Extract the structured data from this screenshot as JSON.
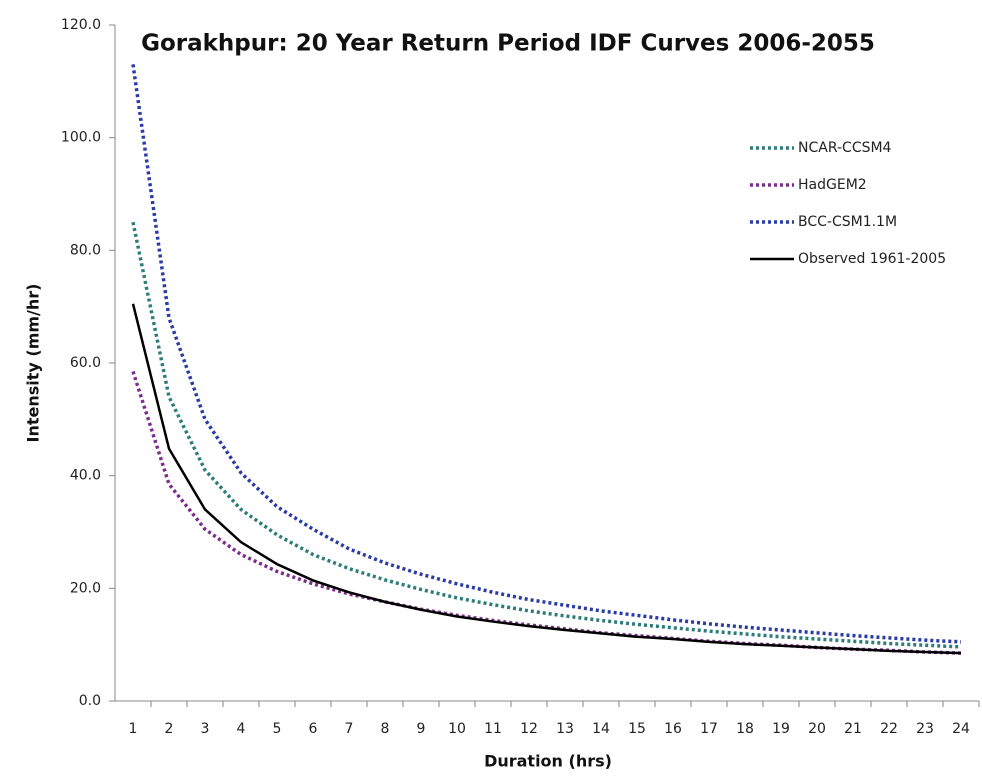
{
  "chart_data": {
    "type": "line",
    "title": "Gorakhpur: 20 Year Return Period IDF Curves 2006-2055",
    "x_label": "Duration (hrs)",
    "y_label": "Intensity (mm/hr)",
    "categories": [
      "1",
      "2",
      "3",
      "4",
      "5",
      "6",
      "7",
      "8",
      "9",
      "10",
      "11",
      "12",
      "13",
      "14",
      "15",
      "16",
      "17",
      "18",
      "19",
      "20",
      "21",
      "22",
      "23",
      "24"
    ],
    "series": [
      {
        "name": "NCAR-CCSM4",
        "color": "#2e7b7b",
        "style": "dotted",
        "values": [
          85,
          54,
          41,
          34,
          29.5,
          26,
          23.5,
          21.5,
          19.8,
          18.3,
          17.1,
          16,
          15.1,
          14.3,
          13.6,
          13,
          12.4,
          11.9,
          11.4,
          11,
          10.6,
          10.2,
          9.9,
          9.6
        ]
      },
      {
        "name": "HadGEM2",
        "color": "#7b2d8b",
        "style": "dotted",
        "values": [
          58.5,
          38.5,
          30.5,
          26,
          23,
          20.8,
          19,
          17.6,
          16.3,
          15.2,
          14.3,
          13.5,
          12.8,
          12.1,
          11.6,
          11.1,
          10.6,
          10.2,
          9.9,
          9.5,
          9.2,
          9,
          8.7,
          8.5
        ]
      },
      {
        "name": "BCC-CSM1.1M",
        "color": "#2a3aa8",
        "style": "dotted",
        "values": [
          113,
          68,
          50,
          40.5,
          34.5,
          30.5,
          27,
          24.5,
          22.5,
          20.8,
          19.3,
          18,
          17,
          16,
          15.2,
          14.4,
          13.7,
          13.1,
          12.6,
          12.1,
          11.6,
          11.2,
          10.8,
          10.5
        ]
      },
      {
        "name": "Observed 1961-2005",
        "color": "#000000",
        "style": "solid",
        "values": [
          70.5,
          44.8,
          34,
          28.2,
          24.3,
          21.4,
          19.3,
          17.6,
          16.2,
          15,
          14.1,
          13.3,
          12.6,
          12,
          11.4,
          11,
          10.5,
          10.1,
          9.8,
          9.5,
          9.2,
          8.9,
          8.7,
          8.5
        ]
      }
    ],
    "ylim": [
      0,
      120
    ],
    "yticks": [
      {
        "value": 0,
        "label": "0.0"
      },
      {
        "value": 20,
        "label": "20.0"
      },
      {
        "value": 40,
        "label": "40.0"
      },
      {
        "value": 60,
        "label": "60.0"
      },
      {
        "value": 80,
        "label": "80.0"
      },
      {
        "value": 100,
        "label": "100.0"
      },
      {
        "value": 120,
        "label": "120.0"
      }
    ],
    "grid": false,
    "legend": "upper right"
  }
}
